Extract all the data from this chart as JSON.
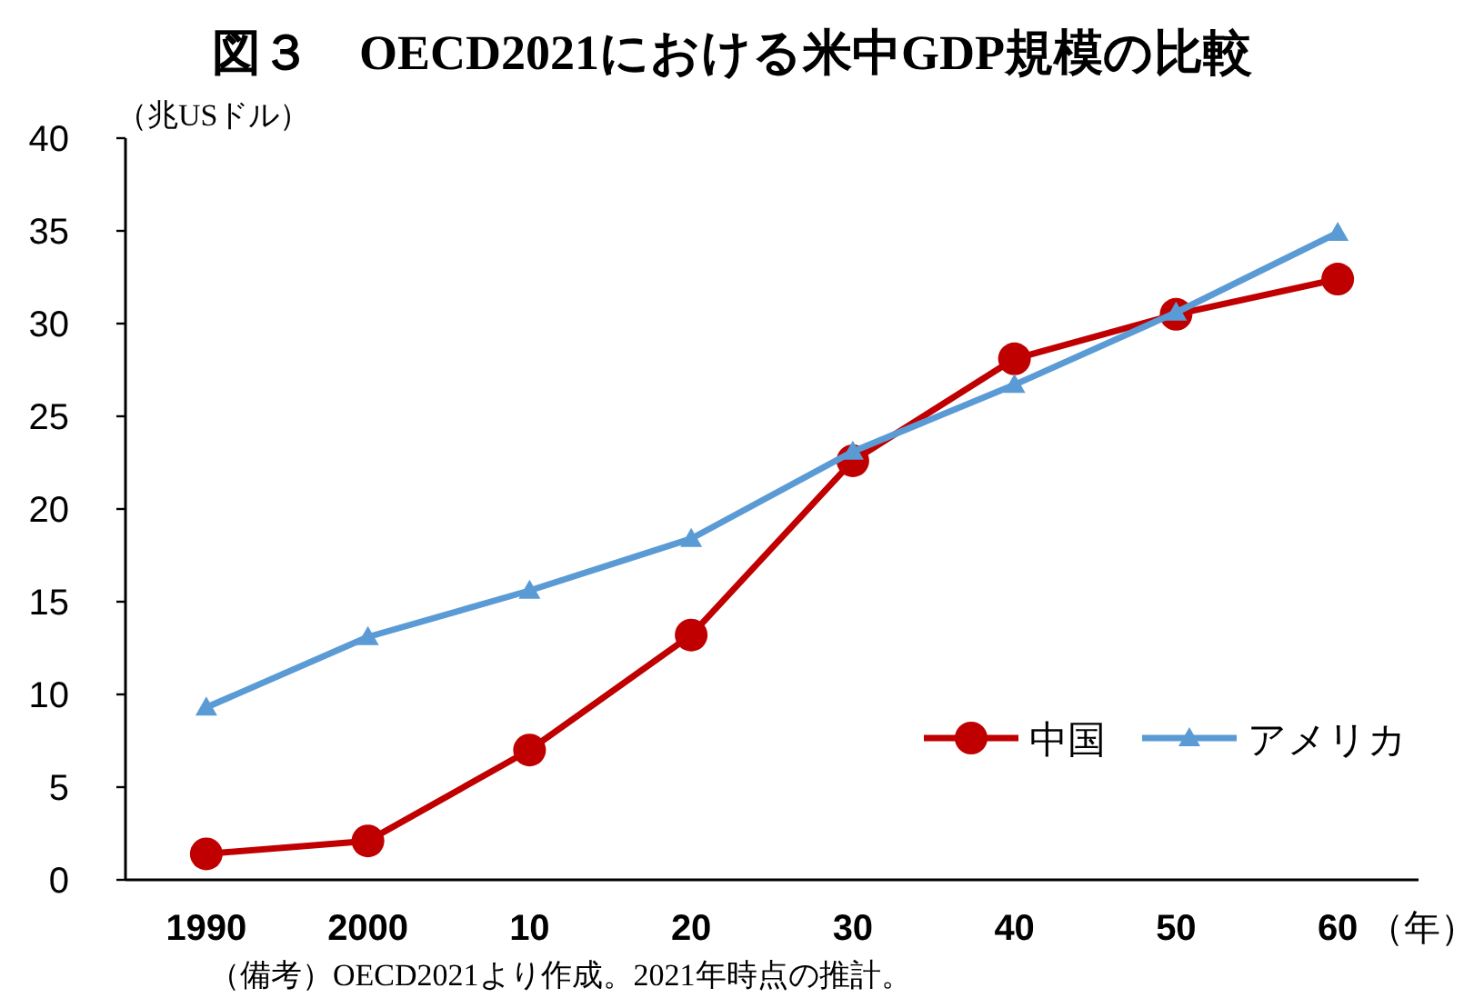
{
  "chart_data": {
    "type": "line",
    "title": "図３　OECD2021における米中GDP規模の比較",
    "ylabel": "（兆USドル）",
    "xlabel": "（年）",
    "categories": [
      "1990",
      "2000",
      "10",
      "20",
      "30",
      "40",
      "50",
      "60"
    ],
    "series": [
      {
        "name": "中国",
        "color": "#c00000",
        "marker": "circle",
        "values": [
          1.4,
          2.1,
          7.0,
          13.2,
          22.6,
          28.1,
          30.5,
          32.4
        ]
      },
      {
        "name": "アメリカ",
        "color": "#5b9bd5",
        "marker": "triangle",
        "values": [
          9.3,
          13.1,
          15.6,
          18.4,
          23.1,
          26.7,
          30.6,
          34.9
        ]
      }
    ],
    "ylim": [
      0,
      40
    ],
    "yticks": [
      0,
      5,
      10,
      15,
      20,
      25,
      30,
      35,
      40
    ],
    "legend": "bottom right",
    "annotations": [
      "（備考）OECD2021より作成。2021年時点の推計。"
    ]
  }
}
